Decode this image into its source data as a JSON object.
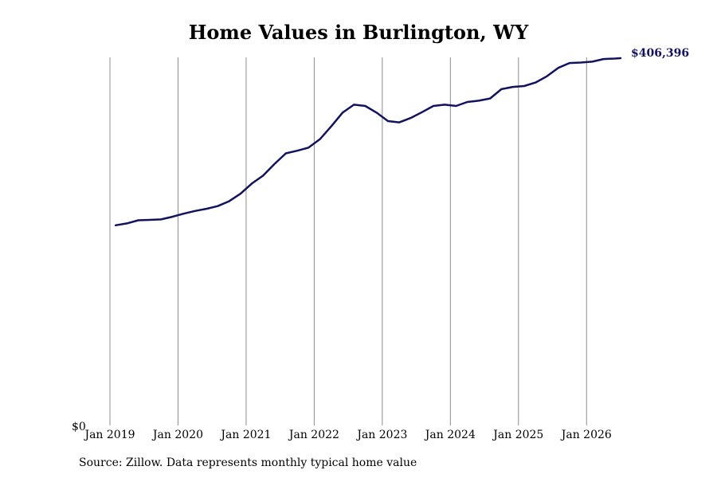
{
  "title": "Home Values in Burlington, WY",
  "source": "Source: Zillow. Data represents monthly typical home value",
  "chart_data": {
    "type": "line",
    "title": "Home Values in Burlington, WY",
    "xlabel": "",
    "ylabel": "",
    "y_min_label": "$0",
    "end_label": "$406,396",
    "grid": "vertical",
    "line_color": "#12125e",
    "ylim": [
      0,
      406396
    ],
    "xlim": [
      "2019-01",
      "2026-07"
    ],
    "x_ticks": [
      {
        "date": "2019-01",
        "label": "Jan 2019"
      },
      {
        "date": "2020-01",
        "label": "Jan 2020"
      },
      {
        "date": "2021-01",
        "label": "Jan 2021"
      },
      {
        "date": "2022-01",
        "label": "Jan 2022"
      },
      {
        "date": "2023-01",
        "label": "Jan 2023"
      },
      {
        "date": "2024-01",
        "label": "Jan 2024"
      },
      {
        "date": "2025-01",
        "label": "Jan 2025"
      },
      {
        "date": "2026-01",
        "label": "Jan 2026"
      }
    ],
    "series": [
      {
        "values": [
          [
            "2019-02",
            225900
          ],
          [
            "2019-04",
            228000
          ],
          [
            "2019-06",
            231500
          ],
          [
            "2019-08",
            232000
          ],
          [
            "2019-10",
            232500
          ],
          [
            "2019-12",
            235500
          ],
          [
            "2020-02",
            239000
          ],
          [
            "2020-04",
            242000
          ],
          [
            "2020-06",
            244500
          ],
          [
            "2020-08",
            247500
          ],
          [
            "2020-10",
            253000
          ],
          [
            "2020-12",
            261500
          ],
          [
            "2021-02",
            273000
          ],
          [
            "2021-04",
            282000
          ],
          [
            "2021-06",
            295000
          ],
          [
            "2021-08",
            307000
          ],
          [
            "2021-10",
            310000
          ],
          [
            "2021-12",
            313500
          ],
          [
            "2022-02",
            323000
          ],
          [
            "2022-04",
            337500
          ],
          [
            "2022-06",
            353000
          ],
          [
            "2022-08",
            362000
          ],
          [
            "2022-10",
            360500
          ],
          [
            "2022-12",
            353000
          ],
          [
            "2023-02",
            343500
          ],
          [
            "2023-04",
            342000
          ],
          [
            "2023-06",
            347000
          ],
          [
            "2023-08",
            353500
          ],
          [
            "2023-10",
            360500
          ],
          [
            "2023-12",
            362000
          ],
          [
            "2024-02",
            360500
          ],
          [
            "2024-04",
            365000
          ],
          [
            "2024-06",
            366500
          ],
          [
            "2024-08",
            369000
          ],
          [
            "2024-10",
            379500
          ],
          [
            "2024-12",
            382000
          ],
          [
            "2025-02",
            383000
          ],
          [
            "2025-04",
            387000
          ],
          [
            "2025-06",
            394000
          ],
          [
            "2025-08",
            403500
          ],
          [
            "2025-10",
            409000
          ],
          [
            "2025-12",
            409500
          ],
          [
            "2026-02",
            410500
          ],
          [
            "2026-04",
            413500
          ],
          [
            "2026-06",
            414000
          ],
          [
            "2026-07",
            414500
          ]
        ]
      }
    ]
  }
}
